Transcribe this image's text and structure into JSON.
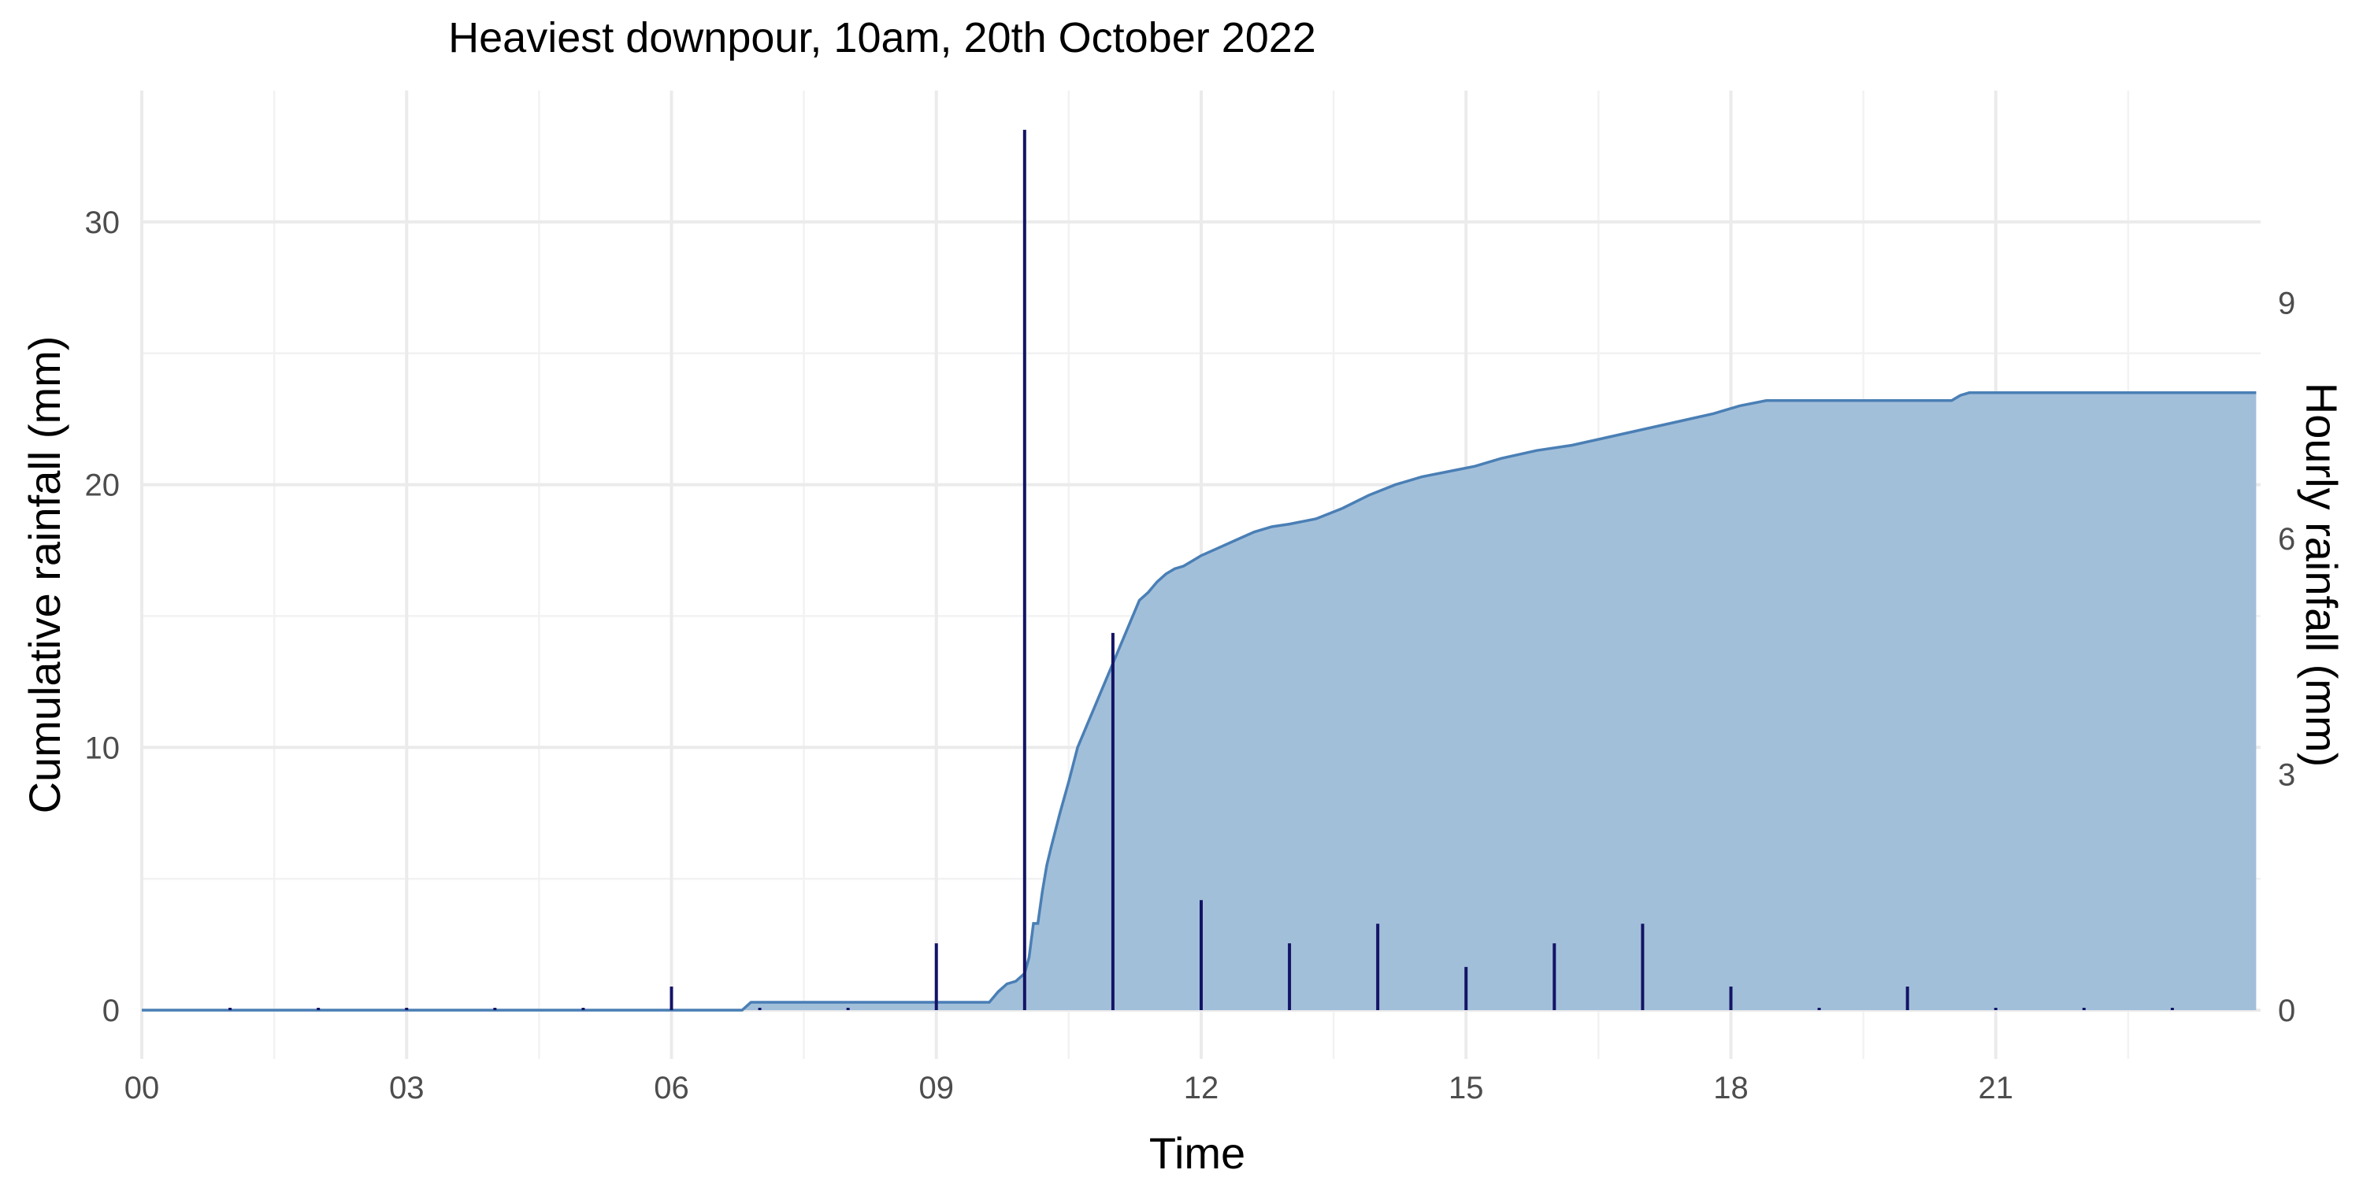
{
  "chart_data": {
    "type": "area",
    "title": "Heaviest downpour, 10am, 20th October 2022",
    "xlabel": "Time",
    "ylabel": "Cumulative rainfall (mm)",
    "y2label": "Hourly rainfall (mm)",
    "xlim": [
      0,
      24
    ],
    "ylim": [
      0,
      35
    ],
    "y2lim": [
      0,
      11.7
    ],
    "x_ticks": [
      0,
      3,
      6,
      9,
      12,
      15,
      18,
      21
    ],
    "x_tick_labels": [
      "00",
      "03",
      "06",
      "09",
      "12",
      "15",
      "18",
      "21"
    ],
    "y_ticks": [
      0,
      10,
      20,
      30
    ],
    "y_tick_labels": [
      "0",
      "10",
      "20",
      "30"
    ],
    "y2_ticks": [
      0,
      3,
      6,
      9
    ],
    "y2_tick_labels": [
      "0",
      "3",
      "6",
      "9"
    ],
    "grid": true,
    "colors": {
      "area_fill": "#a2bfda",
      "area_line": "#4a7fb5",
      "bars": "#141466"
    },
    "series": [
      {
        "type": "area",
        "axis": "left",
        "x": [
          0,
          6.8,
          6.9,
          7.5,
          8.5,
          9.6,
          9.7,
          9.8,
          9.9,
          10.0,
          10.05,
          10.1,
          10.15,
          10.2,
          10.25,
          10.3,
          10.4,
          10.5,
          10.6,
          10.7,
          10.8,
          10.9,
          11.0,
          11.1,
          11.2,
          11.3,
          11.4,
          11.5,
          11.6,
          11.7,
          11.8,
          11.9,
          12.0,
          12.2,
          12.4,
          12.6,
          12.8,
          13.0,
          13.3,
          13.6,
          13.9,
          14.2,
          14.5,
          14.8,
          15.1,
          15.4,
          15.8,
          16.2,
          16.6,
          17.0,
          17.4,
          17.8,
          18.1,
          18.4,
          19.5,
          20.5,
          20.6,
          20.7,
          21.5,
          22.5,
          23.95
        ],
        "y": [
          0,
          0,
          0.3,
          0.3,
          0.3,
          0.3,
          0.7,
          1.0,
          1.1,
          1.4,
          2.0,
          3.3,
          3.3,
          4.5,
          5.5,
          6.2,
          7.5,
          8.7,
          10.0,
          10.8,
          11.6,
          12.4,
          13.2,
          14.0,
          14.8,
          15.6,
          15.9,
          16.3,
          16.6,
          16.8,
          16.9,
          17.1,
          17.3,
          17.6,
          17.9,
          18.2,
          18.4,
          18.5,
          18.7,
          19.1,
          19.6,
          20.0,
          20.3,
          20.5,
          20.7,
          21.0,
          21.3,
          21.5,
          21.8,
          22.1,
          22.4,
          22.7,
          23.0,
          23.2,
          23.2,
          23.2,
          23.4,
          23.5,
          23.5,
          23.5,
          23.5
        ]
      },
      {
        "type": "bar",
        "axis": "right",
        "x": [
          1,
          2,
          3,
          4,
          5,
          6,
          7,
          8,
          9,
          10,
          11,
          12,
          13,
          14,
          15,
          16,
          17,
          18,
          19,
          20,
          21,
          22,
          23
        ],
        "values": [
          0.03,
          0.03,
          0.03,
          0.03,
          0.03,
          0.3,
          0.03,
          0.03,
          0.85,
          11.2,
          4.8,
          1.4,
          0.85,
          1.1,
          0.55,
          0.85,
          1.1,
          0.3,
          0.03,
          0.3,
          0.03,
          0.03,
          0.03
        ]
      }
    ]
  }
}
